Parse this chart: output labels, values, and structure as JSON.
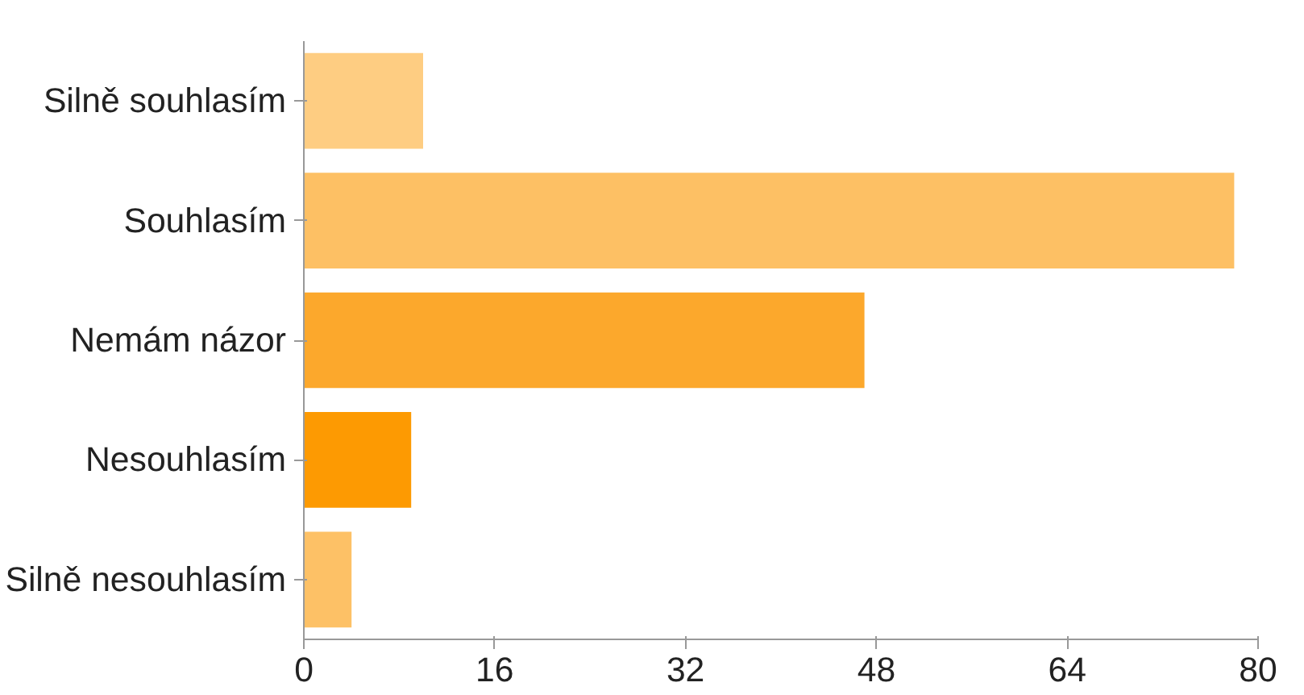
{
  "chart_data": {
    "type": "bar",
    "orientation": "horizontal",
    "categories": [
      "Silně souhlasím",
      "Souhlasím",
      "Nemám názor",
      "Nesouhlasím",
      "Silně nesouhlasím"
    ],
    "values": [
      10,
      78,
      47,
      9,
      4
    ],
    "colors": [
      "#fecd82",
      "#fdc064",
      "#fca82c",
      "#fd9a02",
      "#fdc166"
    ],
    "xlim": [
      0,
      80
    ],
    "xticks": [
      0,
      16,
      32,
      48,
      64,
      80
    ],
    "grid": false
  }
}
